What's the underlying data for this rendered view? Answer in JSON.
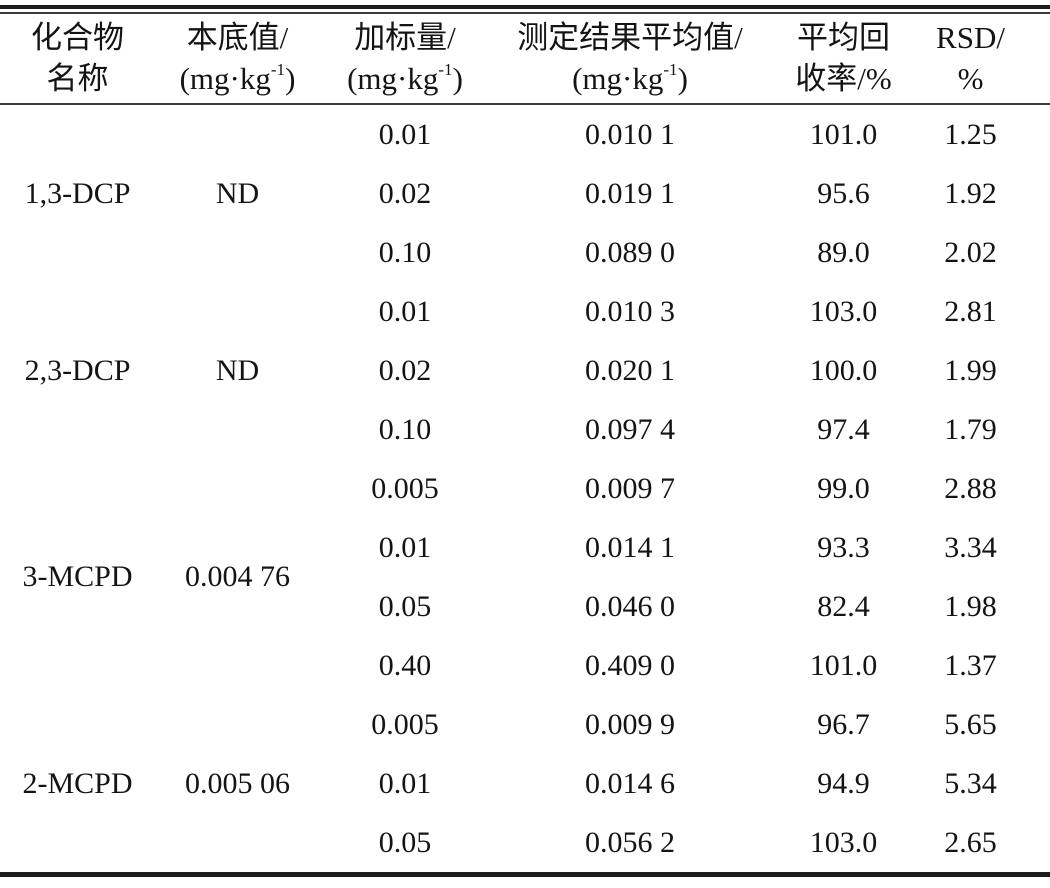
{
  "table": {
    "columns": [
      {
        "title": "化合物",
        "subtitle": "名称"
      },
      {
        "title": "本底值/",
        "unit_open": "(mg·kg",
        "unit_sup": "-1",
        "unit_close": ")"
      },
      {
        "title": "加标量/",
        "unit_open": "(mg·kg",
        "unit_sup": "-1",
        "unit_close": ")"
      },
      {
        "title": "测定结果平均值/",
        "unit_open": "(mg·kg",
        "unit_sup": "-1",
        "unit_close": ")"
      },
      {
        "title": "平均回",
        "subtitle": "收率/%"
      },
      {
        "title": "RSD/",
        "subtitle": "%"
      }
    ],
    "groups": [
      {
        "compound": "1,3-DCP",
        "background": "ND",
        "rows": [
          {
            "spike": "0.01",
            "result": "0.010 1",
            "recovery": "101.0",
            "rsd": "1.25"
          },
          {
            "spike": "0.02",
            "result": "0.019 1",
            "recovery": "95.6",
            "rsd": "1.92"
          },
          {
            "spike": "0.10",
            "result": "0.089 0",
            "recovery": "89.0",
            "rsd": "2.02"
          }
        ]
      },
      {
        "compound": "2,3-DCP",
        "background": "ND",
        "rows": [
          {
            "spike": "0.01",
            "result": "0.010 3",
            "recovery": "103.0",
            "rsd": "2.81"
          },
          {
            "spike": "0.02",
            "result": "0.020 1",
            "recovery": "100.0",
            "rsd": "1.99"
          },
          {
            "spike": "0.10",
            "result": "0.097 4",
            "recovery": "97.4",
            "rsd": "1.79"
          }
        ]
      },
      {
        "compound": "3-MCPD",
        "background": "0.004 76",
        "rows": [
          {
            "spike": "0.005",
            "result": "0.009 7",
            "recovery": "99.0",
            "rsd": "2.88"
          },
          {
            "spike": "0.01",
            "result": "0.014 1",
            "recovery": "93.3",
            "rsd": "3.34"
          },
          {
            "spike": "0.05",
            "result": "0.046 0",
            "recovery": "82.4",
            "rsd": "1.98"
          },
          {
            "spike": "0.40",
            "result": "0.409 0",
            "recovery": "101.0",
            "rsd": "1.37"
          }
        ]
      },
      {
        "compound": "2-MCPD",
        "background": "0.005 06",
        "rows": [
          {
            "spike": "0.005",
            "result": "0.009 9",
            "recovery": "96.7",
            "rsd": "5.65"
          },
          {
            "spike": "0.01",
            "result": "0.014 6",
            "recovery": "94.9",
            "rsd": "5.34"
          },
          {
            "spike": "0.05",
            "result": "0.056 2",
            "recovery": "103.0",
            "rsd": "2.65"
          }
        ]
      }
    ]
  },
  "chart_data": {
    "type": "table",
    "columns": [
      "化合物名称",
      "本底值/(mg·kg⁻¹)",
      "加标量/(mg·kg⁻¹)",
      "测定结果平均值/(mg·kg⁻¹)",
      "平均回收率/%",
      "RSD/%"
    ],
    "rows": [
      [
        "1,3-DCP",
        "ND",
        "0.01",
        "0.010 1",
        "101.0",
        "1.25"
      ],
      [
        "1,3-DCP",
        "ND",
        "0.02",
        "0.019 1",
        "95.6",
        "1.92"
      ],
      [
        "1,3-DCP",
        "ND",
        "0.10",
        "0.089 0",
        "89.0",
        "2.02"
      ],
      [
        "2,3-DCP",
        "ND",
        "0.01",
        "0.010 3",
        "103.0",
        "2.81"
      ],
      [
        "2,3-DCP",
        "ND",
        "0.02",
        "0.020 1",
        "100.0",
        "1.99"
      ],
      [
        "2,3-DCP",
        "ND",
        "0.10",
        "0.097 4",
        "97.4",
        "1.79"
      ],
      [
        "3-MCPD",
        "0.004 76",
        "0.005",
        "0.009 7",
        "99.0",
        "2.88"
      ],
      [
        "3-MCPD",
        "0.004 76",
        "0.01",
        "0.014 1",
        "93.3",
        "3.34"
      ],
      [
        "3-MCPD",
        "0.004 76",
        "0.05",
        "0.046 0",
        "82.4",
        "1.98"
      ],
      [
        "3-MCPD",
        "0.004 76",
        "0.40",
        "0.409 0",
        "101.0",
        "1.37"
      ],
      [
        "2-MCPD",
        "0.005 06",
        "0.005",
        "0.009 9",
        "96.7",
        "5.65"
      ],
      [
        "2-MCPD",
        "0.005 06",
        "0.01",
        "0.014 6",
        "94.9",
        "5.34"
      ],
      [
        "2-MCPD",
        "0.005 06",
        "0.05",
        "0.056 2",
        "103.0",
        "2.65"
      ]
    ]
  }
}
